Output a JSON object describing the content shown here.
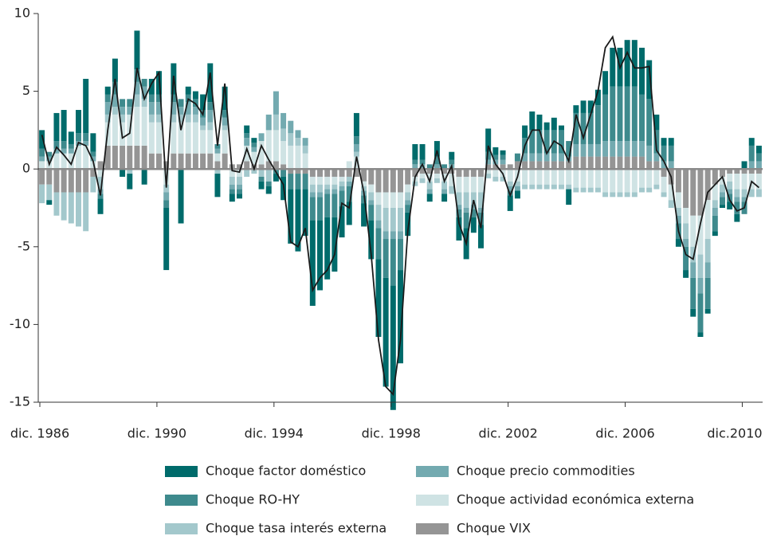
{
  "chart_data": {
    "type": "stacked-bar",
    "categories": [
      "dic. 1986",
      null,
      null,
      null,
      null,
      null,
      null,
      null,
      null,
      null,
      null,
      null,
      null,
      null,
      null,
      null,
      "dic. 1990",
      null,
      null,
      null,
      null,
      null,
      null,
      null,
      null,
      null,
      null,
      null,
      null,
      null,
      null,
      null,
      "dic. 1994",
      null,
      null,
      null,
      null,
      null,
      null,
      null,
      null,
      null,
      null,
      null,
      null,
      null,
      null,
      null,
      "dic. 1998",
      null,
      null,
      null,
      null,
      null,
      null,
      null,
      null,
      null,
      null,
      null,
      null,
      null,
      null,
      null,
      "dic. 2002",
      null,
      null,
      null,
      null,
      null,
      null,
      null,
      null,
      null,
      null,
      null,
      null,
      null,
      null,
      null,
      "dic. 2006",
      null,
      null,
      null,
      null,
      null,
      null,
      null,
      null,
      null,
      null,
      null,
      null,
      null,
      null,
      null,
      "dic.2010",
      null,
      null
    ],
    "series": [
      {
        "name": "Choque factor doméstico",
        "color": "#006b6b",
        "values": [
          1.2,
          -0.3,
          1.8,
          2.0,
          0.8,
          1.5,
          3.5,
          1.2,
          -1.0,
          0.5,
          1.5,
          -0.5,
          -1.0,
          2.5,
          -1.0,
          1.0,
          1.5,
          -4.0,
          2.0,
          -3.5,
          0.5,
          0.5,
          1.0,
          2.5,
          -1.5,
          1.5,
          -0.5,
          -0.3,
          0.5,
          0.3,
          -0.5,
          -0.5,
          -0.5,
          -1.5,
          -3.5,
          -4.0,
          -3.0,
          -5.5,
          -4.5,
          -4.0,
          -3.5,
          -2.0,
          -1.5,
          1.5,
          -1.5,
          -2.5,
          -5.0,
          -7.0,
          -8.0,
          -6.0,
          -1.5,
          1.0,
          1.0,
          -0.5,
          1.0,
          -0.5,
          0.5,
          -1.5,
          -2.0,
          -1.0,
          -1.5,
          1.5,
          0.5,
          0.3,
          -1.0,
          -0.5,
          0.8,
          1.2,
          1.0,
          0.5,
          0.8,
          0.3,
          -1.0,
          0.5,
          0.8,
          0.8,
          1.0,
          1.5,
          2.5,
          2.5,
          3.0,
          3.0,
          3.0,
          2.5,
          1.0,
          0.5,
          0.5,
          -0.5,
          -0.5,
          -0.5,
          -0.3,
          -0.3,
          -0.3,
          -0.2,
          -0.5,
          -0.5,
          0.5,
          0.5,
          0.5
        ]
      },
      {
        "name": "Choque RO-HY",
        "color": "#3e8a8d",
        "values": [
          0.5,
          0.3,
          0.5,
          0.5,
          0.3,
          0.5,
          0.5,
          0.3,
          -0.3,
          0.5,
          0.8,
          0.5,
          0.5,
          0.8,
          0.5,
          0.5,
          0.5,
          -0.5,
          0.5,
          0.5,
          0.5,
          0.5,
          0.5,
          0.5,
          0.3,
          0.5,
          -0.3,
          -0.3,
          0.3,
          0.3,
          -0.3,
          -0.3,
          -0.3,
          -0.5,
          -1.0,
          -1.0,
          -1.0,
          -1.5,
          -1.5,
          -1.5,
          -1.5,
          -1.0,
          -1.0,
          0.5,
          -0.5,
          -1.0,
          -2.0,
          -2.5,
          -3.0,
          -2.0,
          -0.5,
          0.3,
          0.3,
          0.3,
          0.5,
          0.3,
          0.3,
          -0.5,
          -1.0,
          -0.5,
          -0.8,
          0.5,
          0.3,
          0.3,
          -0.3,
          0.5,
          1.0,
          1.5,
          1.5,
          1.5,
          1.5,
          1.5,
          1.0,
          2.0,
          2.0,
          2.0,
          2.5,
          3.0,
          3.5,
          3.5,
          3.5,
          3.5,
          3.0,
          3.0,
          1.5,
          1.0,
          1.0,
          -1.0,
          -1.5,
          -2.0,
          -2.5,
          -2.0,
          -1.0,
          -0.5,
          -0.5,
          -0.8,
          -0.8,
          1.0,
          0.5
        ]
      },
      {
        "name": "Choque tasa interés externa",
        "color": "#a3c8cc",
        "values": [
          -1.2,
          -1.0,
          -1.5,
          -1.8,
          -2.0,
          -2.2,
          -2.5,
          -1.0,
          -0.8,
          0.5,
          0.5,
          0.5,
          -0.3,
          0.8,
          0.5,
          0.5,
          0.5,
          -0.5,
          0.5,
          0.5,
          0.5,
          0.5,
          0.3,
          0.5,
          -0.3,
          0.3,
          -0.5,
          -0.5,
          -0.5,
          -0.3,
          -0.5,
          -0.8,
          1.0,
          0.8,
          0.8,
          0.5,
          0.5,
          -0.5,
          -0.5,
          -0.3,
          -0.3,
          -0.3,
          -0.3,
          0.3,
          -0.3,
          -0.5,
          -1.0,
          -1.5,
          -1.5,
          -1.5,
          -0.5,
          -0.3,
          -0.3,
          -0.5,
          -0.3,
          -0.5,
          -0.5,
          -0.8,
          -1.0,
          -0.8,
          -1.0,
          -0.3,
          -0.3,
          -0.3,
          -0.3,
          -0.3,
          -0.3,
          -0.3,
          -0.3,
          -0.3,
          -0.3,
          -0.3,
          -0.3,
          -0.3,
          -0.3,
          -0.3,
          -0.3,
          -0.3,
          -0.3,
          -0.3,
          -0.3,
          -0.3,
          -0.3,
          -0.3,
          -0.3,
          -0.3,
          -0.5,
          -0.5,
          -1.0,
          -1.0,
          -1.5,
          -1.5,
          -0.5,
          -0.5,
          -0.5,
          -0.5,
          -0.5,
          -0.5,
          -0.5
        ]
      },
      {
        "name": "Choque precio commodities",
        "color": "#73aab0",
        "values": [
          0.3,
          0.3,
          0.3,
          0.3,
          0.3,
          0.3,
          0.3,
          0.3,
          -0.3,
          0.8,
          0.8,
          0.5,
          0.5,
          0.8,
          0.8,
          0.8,
          0.8,
          -0.5,
          0.8,
          0.5,
          0.8,
          0.5,
          0.5,
          0.8,
          0.3,
          0.5,
          -0.3,
          -0.3,
          0.5,
          0.3,
          0.5,
          1.0,
          1.5,
          1.0,
          0.8,
          0.5,
          0.5,
          -0.3,
          -0.3,
          -0.3,
          -0.3,
          -0.3,
          -0.3,
          0.5,
          -0.3,
          -0.3,
          -0.5,
          -0.5,
          -0.5,
          -0.5,
          -0.3,
          0.3,
          0.3,
          -0.3,
          0.3,
          -0.3,
          0.3,
          -0.3,
          -0.3,
          -0.3,
          -0.3,
          0.3,
          0.3,
          0.3,
          -0.3,
          -0.3,
          0.5,
          0.5,
          0.5,
          0.5,
          0.5,
          0.5,
          0.3,
          0.8,
          0.8,
          0.8,
          0.8,
          1.0,
          1.0,
          1.0,
          1.0,
          1.0,
          1.0,
          1.0,
          0.5,
          0.5,
          0.5,
          -0.5,
          -0.5,
          -1.0,
          -1.0,
          -1.0,
          -0.5,
          -0.3,
          -0.3,
          -0.3,
          -0.3,
          0.5,
          0.5
        ]
      },
      {
        "name": "Choque actividad económica externa",
        "color": "#cfe3e4",
        "values": [
          0.5,
          0.5,
          1.0,
          1.0,
          1.0,
          1.5,
          1.5,
          0.5,
          -0.5,
          1.5,
          2.0,
          1.5,
          2.0,
          2.5,
          2.5,
          2.0,
          2.0,
          -1.0,
          2.0,
          2.0,
          2.0,
          2.0,
          1.5,
          1.5,
          0.5,
          1.5,
          -0.5,
          -0.5,
          1.0,
          0.8,
          1.5,
          2.0,
          2.0,
          1.5,
          1.5,
          1.5,
          1.0,
          -0.5,
          -0.5,
          -0.5,
          -0.5,
          -0.3,
          0.5,
          0.8,
          -0.3,
          -0.5,
          -0.8,
          -1.0,
          -1.0,
          -1.0,
          -0.5,
          -0.3,
          -0.3,
          -0.5,
          -0.3,
          -0.5,
          -0.8,
          -1.0,
          -1.0,
          -1.0,
          -1.0,
          -0.3,
          -0.5,
          -0.5,
          -0.8,
          -0.8,
          -1.0,
          -1.0,
          -1.0,
          -1.0,
          -1.0,
          -1.0,
          -1.0,
          -1.2,
          -1.2,
          -1.2,
          -1.2,
          -1.5,
          -1.5,
          -1.5,
          -1.5,
          -1.5,
          -1.2,
          -1.2,
          -1.0,
          -1.0,
          -1.0,
          -1.0,
          -1.0,
          -2.0,
          -2.5,
          -2.5,
          -1.0,
          -0.5,
          -0.5,
          -1.0,
          -1.0,
          -1.0,
          -1.0
        ]
      },
      {
        "name": "Choque VIX",
        "color": "#959595",
        "values": [
          -1.0,
          -1.0,
          -1.5,
          -1.5,
          -1.5,
          -1.5,
          -1.5,
          -0.5,
          0.5,
          1.5,
          1.5,
          1.5,
          1.5,
          1.5,
          1.5,
          1.0,
          1.0,
          0.5,
          1.0,
          1.0,
          1.0,
          1.0,
          1.0,
          1.0,
          0.5,
          1.0,
          0.3,
          0.3,
          0.5,
          0.3,
          0.3,
          0.5,
          0.5,
          0.3,
          -0.3,
          -0.3,
          -0.3,
          -0.5,
          -0.5,
          -0.5,
          -0.5,
          -0.5,
          -0.5,
          -0.5,
          -0.8,
          -1.0,
          -1.5,
          -1.5,
          -1.5,
          -1.5,
          -1.0,
          -0.5,
          -0.3,
          -0.3,
          -0.3,
          -0.3,
          -0.3,
          -0.5,
          -0.5,
          -0.5,
          -0.5,
          0.3,
          0.3,
          0.3,
          0.3,
          0.5,
          0.5,
          0.5,
          0.5,
          0.5,
          0.5,
          0.5,
          0.5,
          0.8,
          0.8,
          0.8,
          0.8,
          0.8,
          0.8,
          0.8,
          0.8,
          0.8,
          0.8,
          0.5,
          0.5,
          -0.5,
          -1.0,
          -1.5,
          -2.5,
          -3.0,
          -3.0,
          -2.0,
          -1.0,
          -0.5,
          -0.3,
          -0.3,
          -0.3,
          -0.3,
          -0.3
        ]
      }
    ],
    "line": {
      "color": "#1a1a1a",
      "values": [
        2.2,
        0.3,
        1.4,
        0.9,
        0.3,
        1.7,
        1.5,
        0.5,
        -1.7,
        2.5,
        5.8,
        2.0,
        2.3,
        6.5,
        4.5,
        5.5,
        6.2,
        -1.2,
        6.0,
        2.5,
        4.5,
        4.2,
        3.5,
        6.2,
        1.5,
        5.5,
        -0.1,
        -0.2,
        1.3,
        0.0,
        1.5,
        0.6,
        -0.2,
        -1.0,
        -4.7,
        -5.0,
        -3.8,
        -7.8,
        -7.0,
        -6.5,
        -5.5,
        -2.2,
        -2.5,
        0.8,
        -1.5,
        -5.5,
        -11,
        -14,
        -14.5,
        -11,
        -4,
        -0.5,
        0.3,
        -0.8,
        1.2,
        -0.8,
        0.2,
        -3.5,
        -4.8,
        -2,
        -3.8,
        1.5,
        0.3,
        -0.3,
        -1.7,
        -0.5,
        1.5,
        2.5,
        2.5,
        1.0,
        1.8,
        1.5,
        0.5,
        3.5,
        2.0,
        3.5,
        5,
        7.8,
        8.5,
        6.5,
        7.5,
        6.5,
        6.5,
        6.6,
        1.2,
        0.5,
        -0.5,
        -4,
        -5.5,
        -5.8,
        -3.5,
        -1.5,
        -1.0,
        -0.5,
        -2.0,
        -2.7,
        -2.5,
        -0.8,
        -1.2
      ]
    },
    "ylim": [
      -15,
      10
    ],
    "yticks": [
      -15,
      -10,
      -5,
      0,
      5,
      10
    ]
  }
}
